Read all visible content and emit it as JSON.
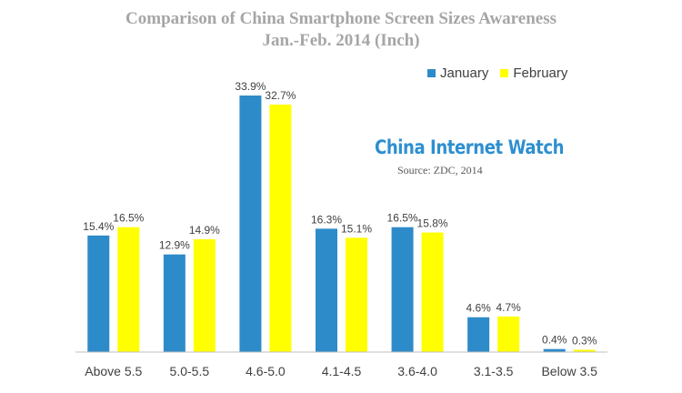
{
  "title_line1": "Comparison of China Smartphone Screen Sizes Awareness",
  "title_line2": "Jan.-Feb. 2014 (Inch)",
  "watermark": "China Internet Watch",
  "source": "Source: ZDC, 2014",
  "colors": {
    "january": "#2e8bc9",
    "february": "#ffff00",
    "axis": "#bfbfbf"
  },
  "chart_data": {
    "type": "bar",
    "title": "Comparison of China Smartphone Screen Sizes Awareness Jan.-Feb. 2014 (Inch)",
    "categories": [
      "Above 5.5",
      "5.0-5.5",
      "4.6-5.0",
      "4.1-4.5",
      "3.6-4.0",
      "3.1-3.5",
      "Below 3.5"
    ],
    "series": [
      {
        "name": "January",
        "values": [
          15.4,
          12.9,
          33.9,
          16.3,
          16.5,
          4.6,
          0.4
        ],
        "labels": [
          "15.4%",
          "12.9%",
          "33.9%",
          "16.3%",
          "16.5%",
          "4.6%",
          "0.4%"
        ]
      },
      {
        "name": "February",
        "values": [
          16.5,
          14.9,
          32.7,
          15.1,
          15.8,
          4.7,
          0.3
        ],
        "labels": [
          "16.5%",
          "14.9%",
          "32.7%",
          "15.1%",
          "15.8%",
          "4.7%",
          "0.3%"
        ]
      }
    ],
    "ylim": [
      0,
      34
    ],
    "legend": "top-right",
    "grid": false,
    "xlabel": "",
    "ylabel": ""
  }
}
